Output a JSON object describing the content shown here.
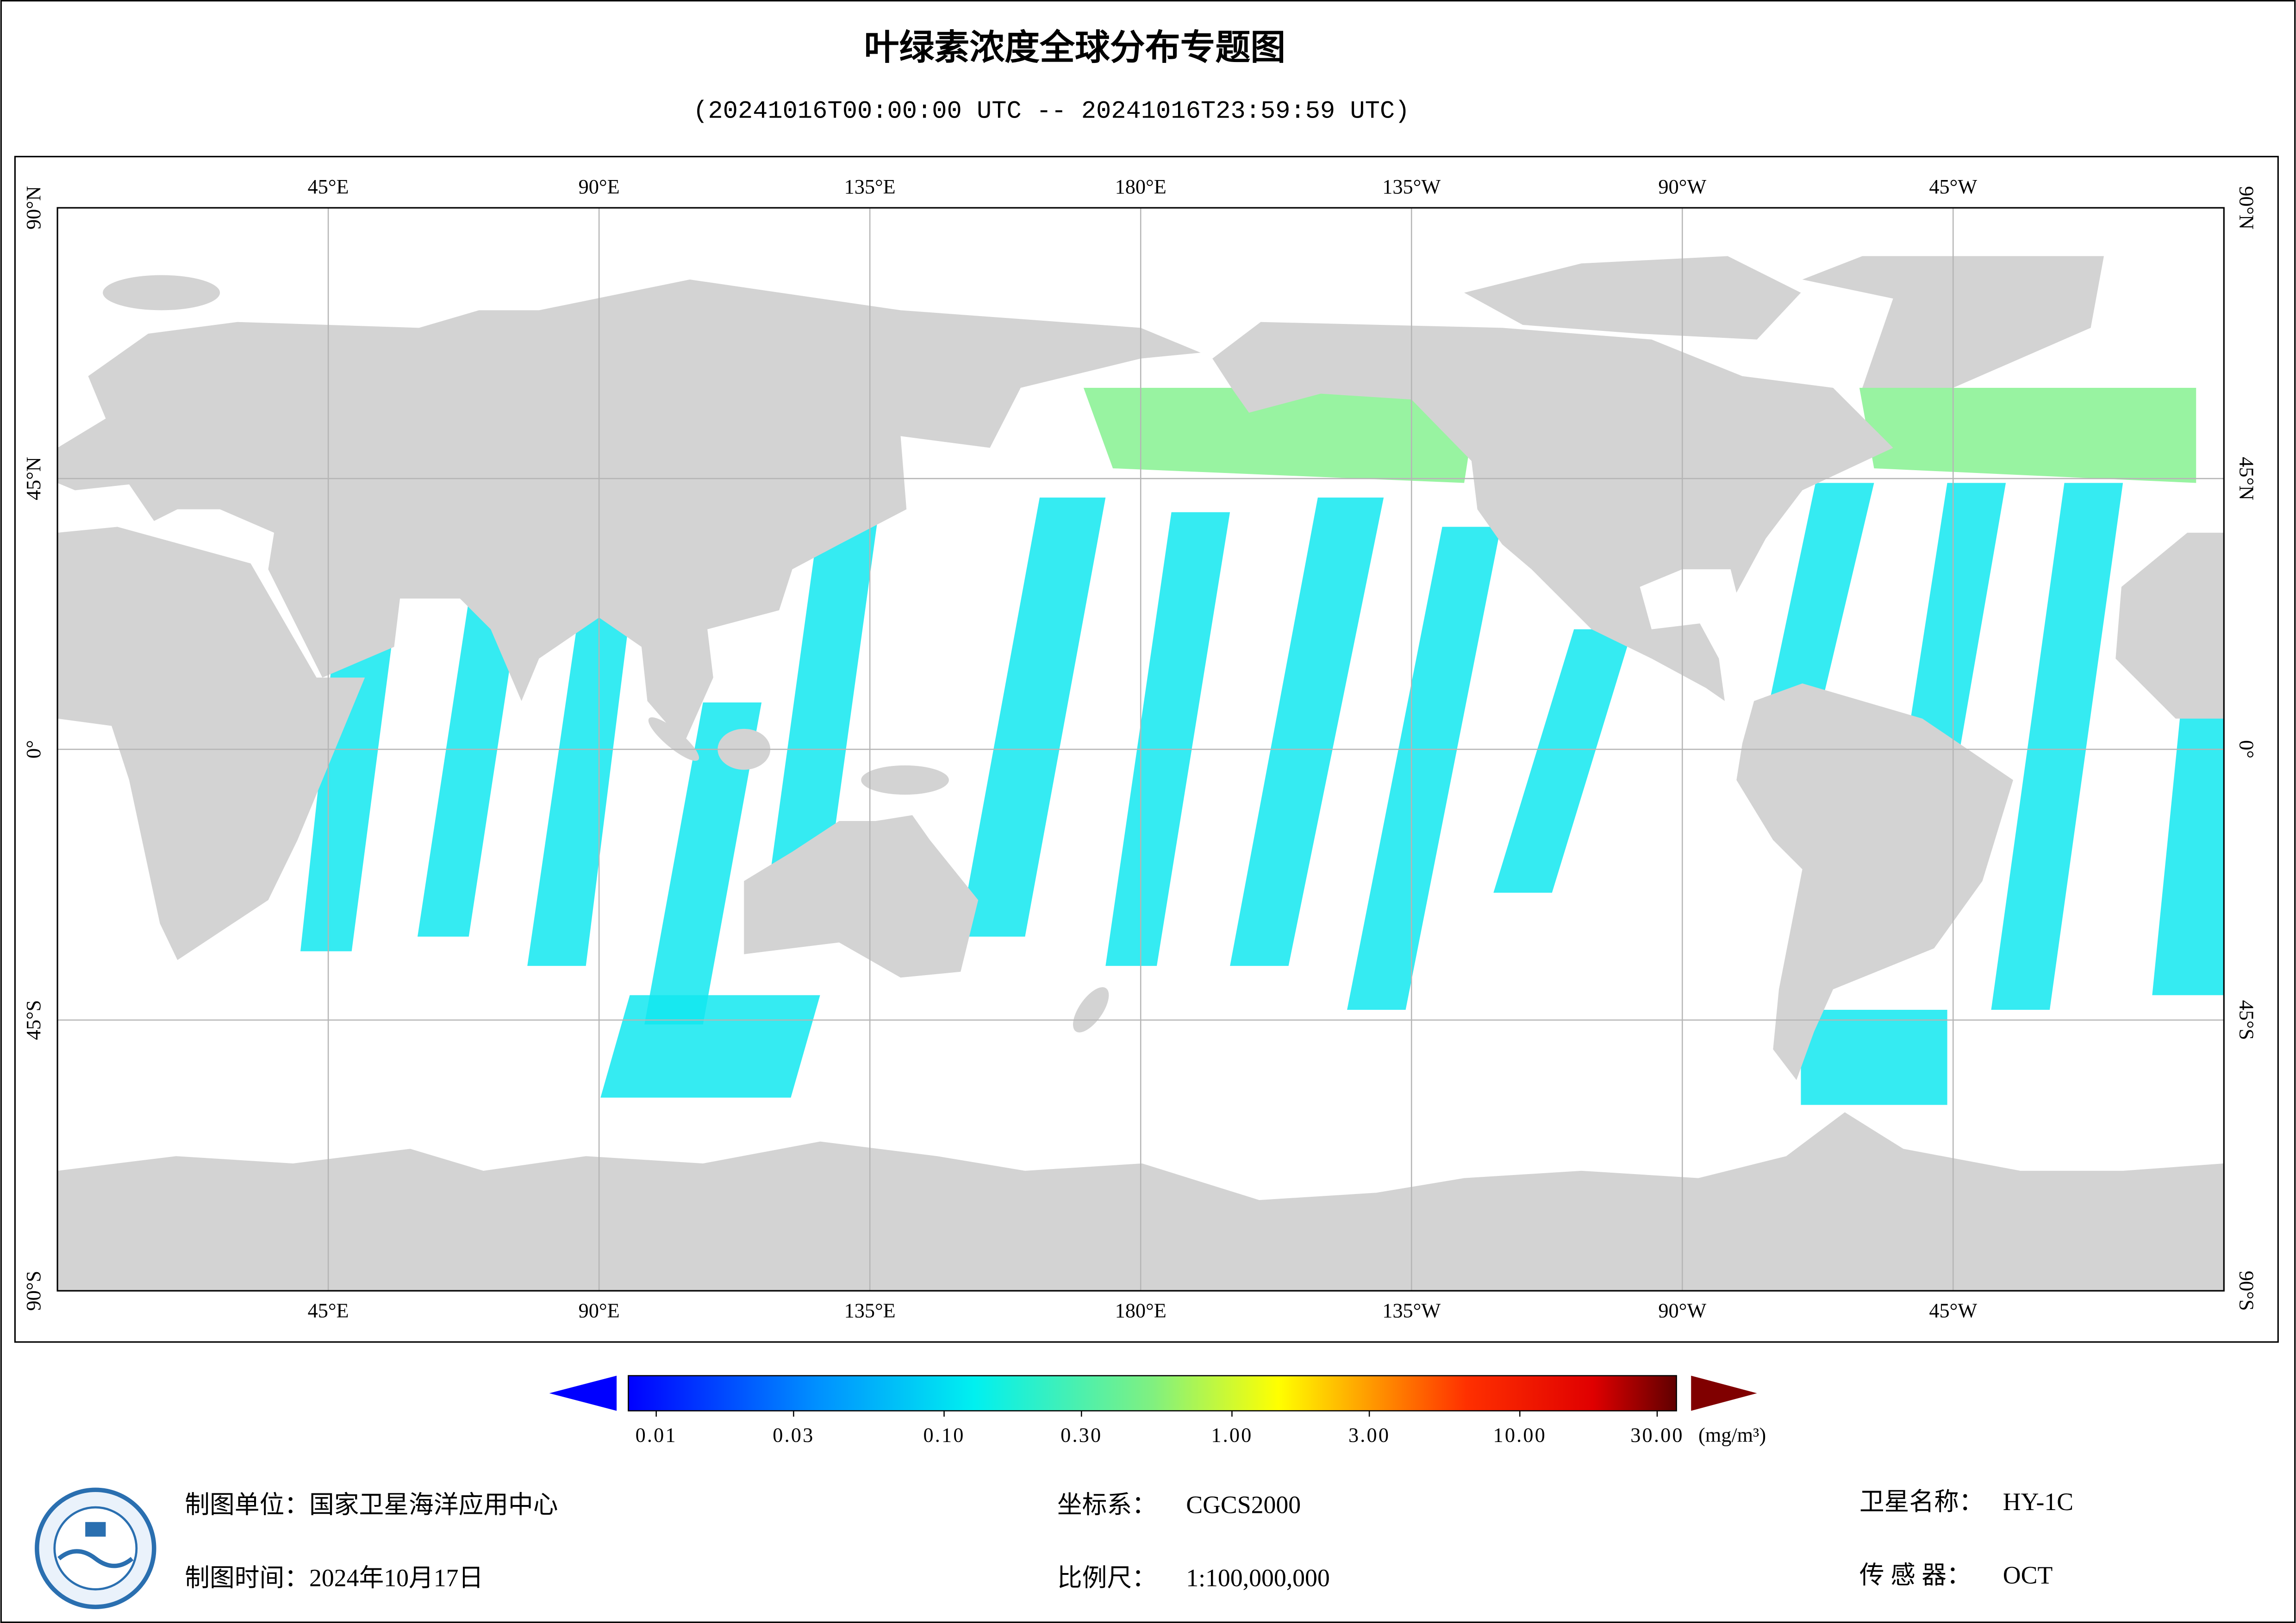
{
  "title": "叶绿素浓度全球分布专题图",
  "subtitle": "(20241016T00:00:00 UTC -- 20241016T23:59:59 UTC)",
  "map": {
    "lon_range": [
      0,
      360
    ],
    "lat_range": [
      -90,
      90
    ],
    "lon_ticks": [
      {
        "value": 45,
        "label": "45°E"
      },
      {
        "value": 90,
        "label": "90°E"
      },
      {
        "value": 135,
        "label": "135°E"
      },
      {
        "value": 180,
        "label": "180°E"
      },
      {
        "value": 225,
        "label": "135°W"
      },
      {
        "value": 270,
        "label": "90°W"
      },
      {
        "value": 315,
        "label": "45°W"
      }
    ],
    "lat_ticks": [
      {
        "value": 90,
        "label": "90°N"
      },
      {
        "value": 45,
        "label": "45°N"
      },
      {
        "value": 0,
        "label": "0°"
      },
      {
        "value": -45,
        "label": "45°S"
      },
      {
        "value": -90,
        "label": "90°S"
      }
    ]
  },
  "colorbar": {
    "log_scale": true,
    "range": [
      0.008,
      35
    ],
    "ticks": [
      0.01,
      0.03,
      {
        "value": 0.1,
        "label": "0.10"
      },
      {
        "value": 0.3,
        "label": "0.30"
      },
      {
        "value": 1,
        "label": "1.00"
      },
      {
        "value": 3,
        "label": "3.00"
      },
      {
        "value": 10,
        "label": "10.00"
      },
      {
        "value": 30,
        "label": "30.00"
      }
    ],
    "unit": "(mg/m³)"
  },
  "footer": {
    "producer": "制图单位：国家卫星海洋应用中心",
    "date": "制图时间：2024年10月17日",
    "crs_label": "坐标系：",
    "crs": "CGCS2000",
    "scale_label": "比例尺：",
    "scale": "1:100,000,000",
    "satellite_label": "卫星名称：",
    "satellite": "HY-1C",
    "sensor_label": "传 感 器：",
    "sensor": "OCT"
  }
}
